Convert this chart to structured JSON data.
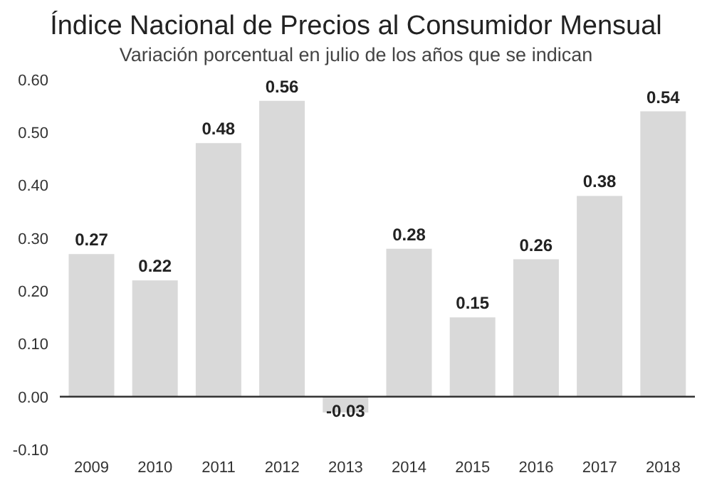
{
  "chart_data": {
    "type": "bar",
    "title": "Índice Nacional de Precios al Consumidor Mensual",
    "subtitle": "Variación porcentual en julio de los años que se indican",
    "categories": [
      "2009",
      "2010",
      "2011",
      "2012",
      "2013",
      "2014",
      "2015",
      "2016",
      "2017",
      "2018"
    ],
    "values": [
      0.27,
      0.22,
      0.48,
      0.56,
      -0.03,
      0.28,
      0.15,
      0.26,
      0.38,
      0.54
    ],
    "color": "#d9d9d9",
    "ylim": [
      -0.1,
      0.6
    ],
    "yticks": [
      {
        "value": -0.1,
        "label": "-0.10"
      },
      {
        "value": 0,
        "label": "0.00"
      },
      {
        "value": 0.1,
        "label": "0.10"
      },
      {
        "value": 0.2,
        "label": "0.20"
      },
      {
        "value": 0.3,
        "label": "0.30"
      },
      {
        "value": 0.4,
        "label": "0.40"
      },
      {
        "value": 0.5,
        "label": "0.50"
      },
      {
        "value": 0.6,
        "label": "0.60"
      }
    ],
    "ref_lines": [
      {
        "axis": "y",
        "value": 0,
        "color": "#333333"
      }
    ],
    "data_labels": true,
    "grid": false,
    "legend": false
  }
}
